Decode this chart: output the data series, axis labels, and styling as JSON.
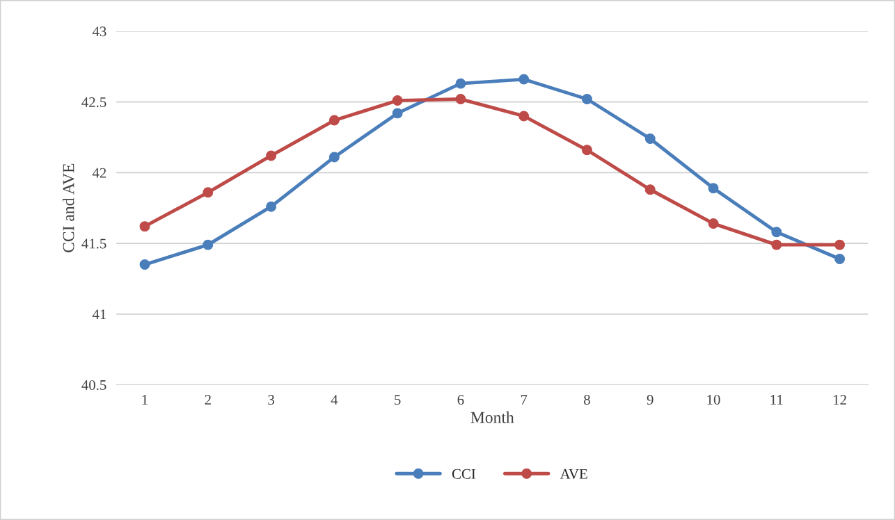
{
  "chart_data": {
    "type": "line",
    "xlabel": "Month",
    "ylabel": "CCI and AVE",
    "categories": [
      "1",
      "2",
      "3",
      "4",
      "5",
      "6",
      "7",
      "8",
      "9",
      "10",
      "11",
      "12"
    ],
    "series": [
      {
        "name": "CCI",
        "color": "#4a7ebb",
        "values": [
          41.35,
          41.49,
          41.76,
          42.11,
          42.42,
          42.63,
          42.66,
          42.52,
          42.24,
          41.89,
          41.58,
          41.39
        ]
      },
      {
        "name": "AVE",
        "color": "#be4b48",
        "values": [
          41.62,
          41.86,
          42.12,
          42.37,
          42.51,
          42.52,
          42.4,
          42.16,
          41.88,
          41.64,
          41.49,
          41.49
        ]
      }
    ],
    "ylim": [
      40.5,
      43
    ],
    "yticks": [
      40.5,
      41,
      41.5,
      42,
      42.5,
      43
    ],
    "grid": "y",
    "legend": "bottom",
    "marker": "circle",
    "line_style": "solid"
  }
}
